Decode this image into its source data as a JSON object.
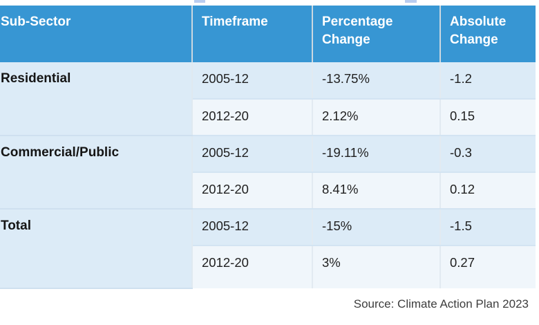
{
  "colors": {
    "header_bg": "#3796d3",
    "sector_column_bg": "#c0dff2",
    "row_shade_a": "#dcebf7",
    "row_shade_b": "#f0f6fb",
    "header_text": "#ffffff",
    "body_text": "#1f1f1f",
    "source_text": "#3d3d3d"
  },
  "chart_data": {
    "type": "table",
    "title": "",
    "columns": [
      "Sub-Sector",
      "Timeframe",
      "Percentage Change",
      "Absolute Change"
    ],
    "groups": [
      {
        "sub_sector": "Residential",
        "rows": [
          {
            "timeframe": "2005-12",
            "percentage_change": "-13.75%",
            "absolute_change": "-1.2"
          },
          {
            "timeframe": "2012-20",
            "percentage_change": "2.12%",
            "absolute_change": "0.15"
          }
        ]
      },
      {
        "sub_sector": "Commercial/Public",
        "rows": [
          {
            "timeframe": "2005-12",
            "percentage_change": "-19.11%",
            "absolute_change": "-0.3"
          },
          {
            "timeframe": "2012-20",
            "percentage_change": "8.41%",
            "absolute_change": "0.12"
          }
        ]
      },
      {
        "sub_sector": "Total",
        "rows": [
          {
            "timeframe": "2005-12",
            "percentage_change": "-15%",
            "absolute_change": "-1.5"
          },
          {
            "timeframe": "2012-20",
            "percentage_change": "3%",
            "absolute_change": "0.27"
          }
        ]
      }
    ],
    "source": "Source: Climate Action Plan 2023",
    "legend_position": "none",
    "grid": "cell-borders"
  }
}
